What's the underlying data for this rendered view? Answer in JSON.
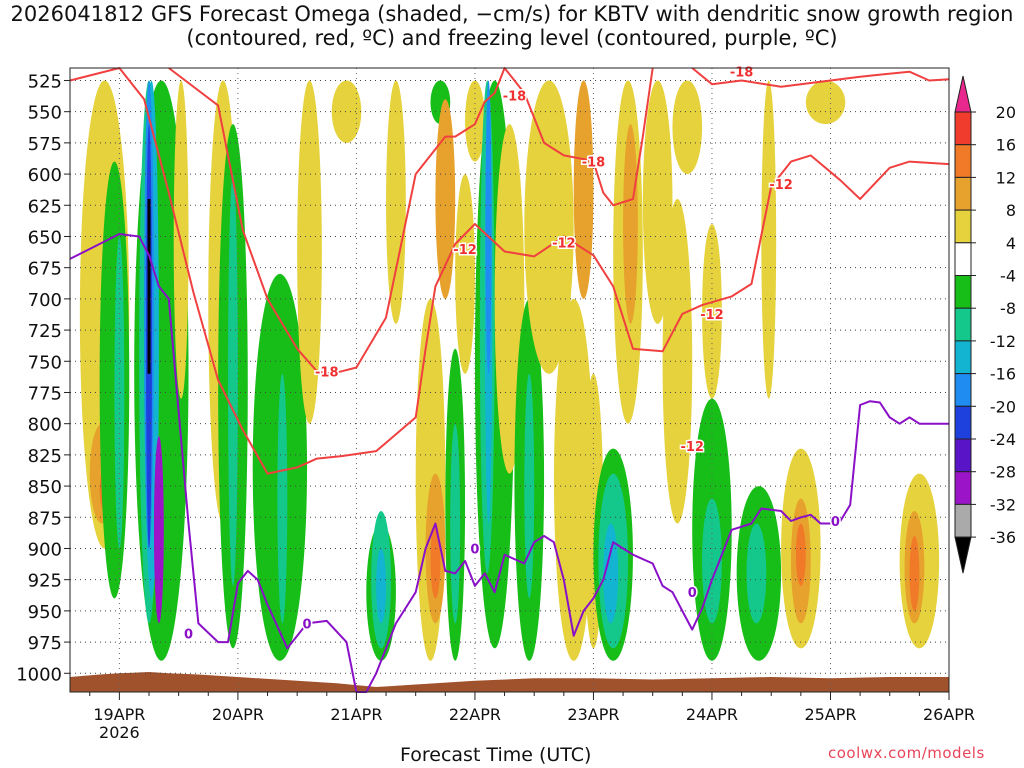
{
  "chart_data": {
    "type": "heatmap",
    "title": "2026041812 GFS Forecast Omega (shaded, −cm/s) for KBTV with dendritic snow growth region (contoured, red, ºC) and freezing level (contoured, purple, ºC)",
    "xlabel": "Forecast Time (UTC)",
    "ylabel": "",
    "x_ticks": [
      "19APR",
      "20APR",
      "21APR",
      "22APR",
      "23APR",
      "24APR",
      "25APR",
      "26APR"
    ],
    "x_year": "2026",
    "x_range_hours": [
      -10,
      168
    ],
    "y_ticks": [
      525,
      550,
      575,
      600,
      625,
      650,
      675,
      700,
      725,
      750,
      775,
      800,
      825,
      850,
      875,
      900,
      925,
      950,
      975,
      1000
    ],
    "ylim": [
      515,
      1015
    ],
    "colorbar": {
      "labels": [
        20,
        16,
        12,
        8,
        4,
        -4,
        -8,
        -12,
        -16,
        -20,
        -24,
        -28,
        -32,
        -36
      ],
      "colors": [
        "#e8288c",
        "#f03c2c",
        "#f07a28",
        "#e6a22c",
        "#e6d23c",
        "#ffffff",
        "#18be18",
        "#14c88c",
        "#12b4d2",
        "#1e8cf0",
        "#1e40dc",
        "#5a14c8",
        "#9b14c8",
        "#aaaaaa",
        "#000000"
      ]
    },
    "contour_labels": {
      "dgz_red": [
        "-18",
        "-18",
        "-18",
        "-18",
        "-12",
        "-12",
        "-12",
        "-12",
        "-12"
      ],
      "freezing_purple": [
        "0",
        "0",
        "0",
        "0",
        "0"
      ]
    },
    "series": [
      {
        "name": "-12 ºC isotherm (red)",
        "x": [
          -10,
          0,
          5,
          10,
          15,
          20,
          25,
          30,
          36,
          40,
          45,
          52,
          60,
          62,
          64,
          68,
          72,
          78,
          84,
          90,
          96,
          100,
          104,
          110,
          114,
          118,
          124,
          128,
          132,
          136,
          140,
          146,
          150,
          156,
          160,
          168
        ],
        "y": [
          525,
          515,
          540,
          615,
          695,
          765,
          805,
          840,
          835,
          828,
          826,
          822,
          795,
          740,
          690,
          656,
          640,
          662,
          666,
          650,
          665,
          690,
          740,
          742,
          712,
          705,
          698,
          688,
          610,
          590,
          585,
          605,
          620,
          595,
          590,
          592
        ]
      },
      {
        "name": "-18 ºC isotherm (red)",
        "x": [
          10,
          20,
          25,
          30,
          36,
          40,
          43,
          45,
          48,
          54,
          60,
          66,
          68,
          72,
          74,
          76,
          78,
          82,
          84,
          86,
          90,
          94,
          96,
          98,
          100,
          104,
          106,
          108
        ],
        "y": [
          515,
          545,
          645,
          700,
          740,
          758,
          760,
          758,
          755,
          715,
          600,
          570,
          570,
          560,
          542,
          535,
          515,
          535,
          555,
          575,
          585,
          588,
          590,
          615,
          625,
          620,
          570,
          515
        ]
      },
      {
        "name": "-18 ºC isotherm upper (red)",
        "x": [
          116,
          120,
          126,
          134,
          150,
          160,
          164,
          168
        ],
        "y": [
          515,
          528,
          525,
          530,
          522,
          518,
          525,
          524
        ]
      },
      {
        "name": "Freezing level 0 ºC (purple)",
        "x": [
          -10,
          -4,
          0,
          4,
          6,
          8,
          10,
          12,
          14,
          16,
          20,
          22,
          24,
          26,
          28,
          30,
          34,
          38,
          42,
          46,
          48,
          50,
          52,
          56,
          60,
          62,
          64,
          66,
          68,
          70,
          72,
          74,
          76,
          78,
          82,
          84,
          86,
          88,
          90,
          92,
          94,
          96,
          98,
          100,
          102,
          104,
          108,
          110,
          112,
          114,
          116,
          118,
          120,
          124,
          128,
          130,
          134,
          136,
          138,
          140,
          142,
          144,
          146,
          148,
          150,
          152,
          154,
          156,
          158,
          160,
          162,
          164,
          168
        ],
        "y": [
          668,
          656,
          648,
          650,
          665,
          690,
          700,
          790,
          880,
          960,
          975,
          975,
          928,
          918,
          925,
          945,
          980,
          960,
          958,
          975,
          1015,
          1015,
          1000,
          960,
          935,
          900,
          880,
          918,
          920,
          910,
          930,
          920,
          935,
          905,
          912,
          895,
          890,
          895,
          925,
          970,
          950,
          940,
          925,
          895,
          900,
          905,
          912,
          930,
          935,
          950,
          965,
          948,
          925,
          885,
          880,
          868,
          870,
          878,
          875,
          873,
          880,
          880,
          878,
          865,
          785,
          782,
          783,
          795,
          800,
          795,
          800,
          800,
          800
        ]
      }
    ]
  },
  "footer": {
    "credit": "coolwx.com/models"
  }
}
